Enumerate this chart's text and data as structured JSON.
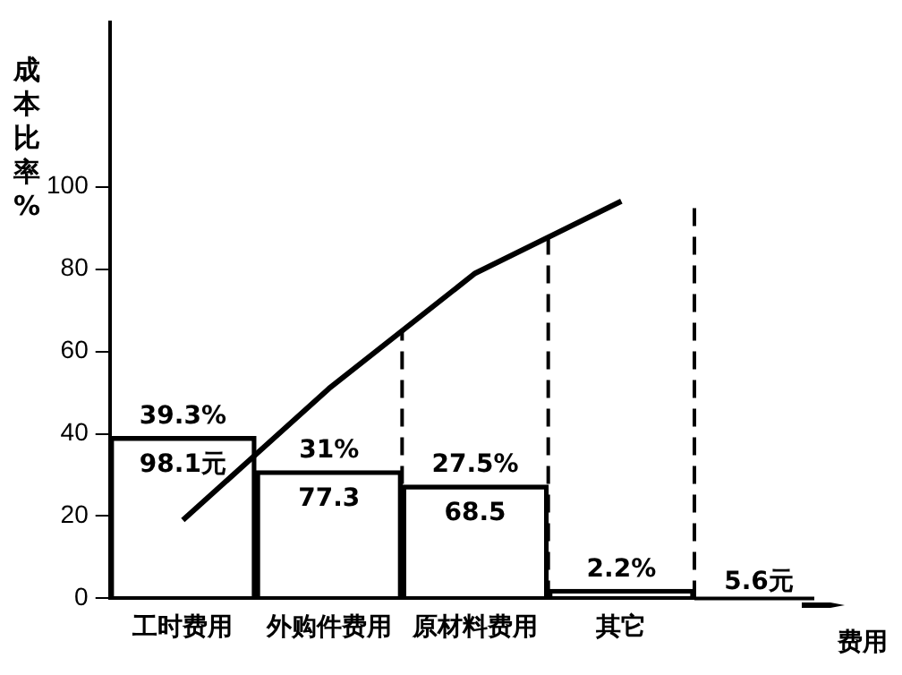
{
  "chart_data": {
    "type": "bar",
    "ylabel": "成本比率%",
    "categories": [
      "工时费用",
      "外购件费用",
      "原材料费用",
      "其它"
    ],
    "series": [
      {
        "color": "#000000",
        "values": [
          39.3,
          31,
          27.5,
          2.2
        ],
        "value_labels": [
          "39.3%",
          "31%",
          "27.5%",
          "2.2%"
        ]
      },
      {
        "type": "line",
        "color": "#000000",
        "values": [
          19,
          51,
          79,
          96.5
        ]
      }
    ],
    "annotations": [
      "98.1元",
      "77.3",
      "68.5",
      "5.6元",
      "费用"
    ],
    "ref_lines": [
      {
        "axis": "x",
        "value": "外购件费用",
        "line_style": "dashed"
      },
      {
        "axis": "x",
        "value": "原材料费用",
        "line_style": "dashed"
      },
      {
        "axis": "x",
        "value": "其它",
        "line_style": "dashed"
      }
    ],
    "ylim": [
      0,
      140
    ],
    "yticks": [
      0,
      20,
      40,
      60,
      80,
      100
    ],
    "grid": false,
    "legend": false,
    "marker": "none"
  }
}
